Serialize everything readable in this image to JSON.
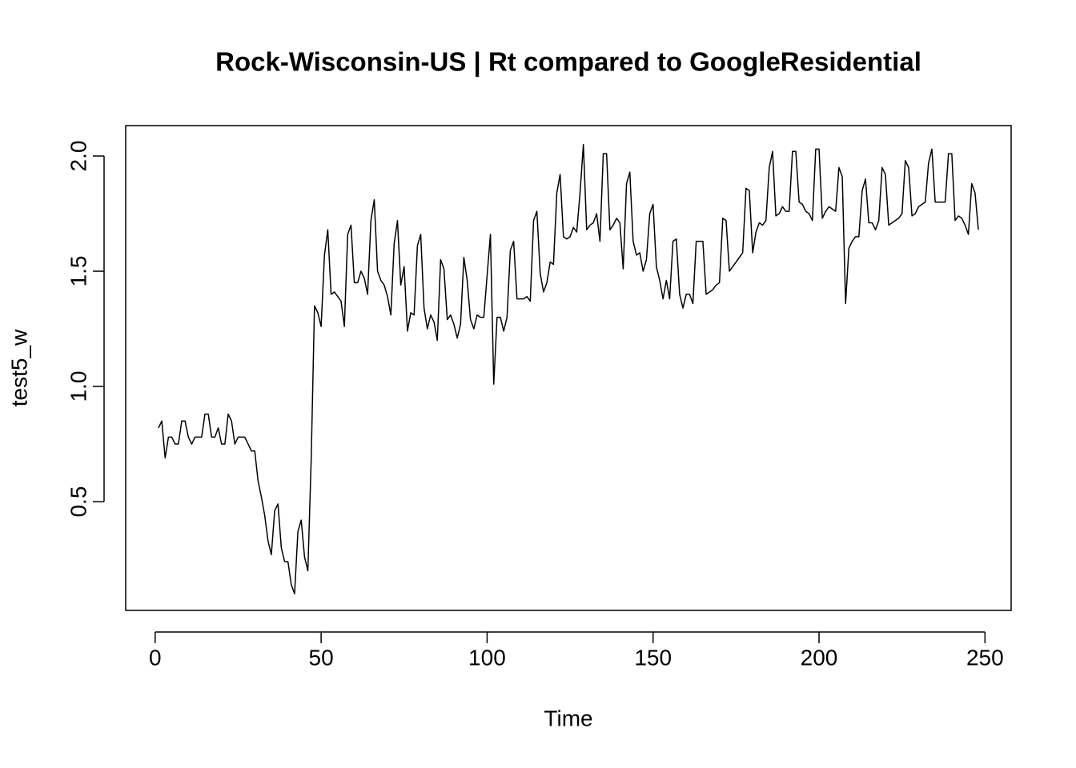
{
  "chart_data": {
    "type": "line",
    "title": "Rock-Wisconsin-US | Rt compared to GoogleResidential",
    "x_label": "Time",
    "y_label": "test5_w",
    "color": "#000000",
    "xlim": [
      -8.88,
      257.88
    ],
    "ylim": [
      0.028,
      2.132
    ],
    "xticks": [
      0,
      50,
      100,
      150,
      200,
      250
    ],
    "yticks": [
      0.5,
      {
        "value": 1.0,
        "label": "1.0"
      },
      1.5,
      {
        "value": 2.0,
        "label": "2.0"
      }
    ],
    "grid": false,
    "x": [
      1,
      2,
      3,
      4,
      5,
      6,
      7,
      8,
      9,
      10,
      11,
      12,
      13,
      14,
      15,
      16,
      17,
      18,
      19,
      20,
      21,
      22,
      23,
      24,
      25,
      26,
      27,
      28,
      29,
      30,
      31,
      32,
      33,
      34,
      35,
      36,
      37,
      38,
      39,
      40,
      41,
      42,
      43,
      44,
      45,
      46,
      47,
      48,
      49,
      50,
      51,
      52,
      53,
      54,
      55,
      56,
      57,
      58,
      59,
      60,
      61,
      62,
      63,
      64,
      65,
      66,
      67,
      68,
      69,
      70,
      71,
      72,
      73,
      74,
      75,
      76,
      77,
      78,
      79,
      80,
      81,
      82,
      83,
      84,
      85,
      86,
      87,
      88,
      89,
      90,
      91,
      92,
      93,
      94,
      95,
      96,
      97,
      98,
      99,
      100,
      101,
      102,
      103,
      104,
      105,
      106,
      107,
      108,
      109,
      110,
      111,
      112,
      113,
      114,
      115,
      116,
      117,
      118,
      119,
      120,
      121,
      122,
      123,
      124,
      125,
      126,
      127,
      128,
      129,
      130,
      131,
      132,
      133,
      134,
      135,
      136,
      137,
      138,
      139,
      140,
      141,
      142,
      143,
      144,
      145,
      146,
      147,
      148,
      149,
      150,
      151,
      152,
      153,
      154,
      155,
      156,
      157,
      158,
      159,
      160,
      161,
      162,
      163,
      164,
      165,
      166,
      167,
      168,
      169,
      170,
      171,
      172,
      173,
      174,
      175,
      176,
      177,
      178,
      179,
      180,
      181,
      182,
      183,
      184,
      185,
      186,
      187,
      188,
      189,
      190,
      191,
      192,
      193,
      194,
      195,
      196,
      197,
      198,
      199,
      200,
      201,
      202,
      203,
      204,
      205,
      206,
      207,
      208,
      209,
      210,
      211,
      212,
      213,
      214,
      215,
      216,
      217,
      218,
      219,
      220,
      221,
      222,
      223,
      224,
      225,
      226,
      227,
      228,
      229,
      230,
      231,
      232,
      233,
      234,
      235,
      236,
      237,
      238,
      239,
      240,
      241,
      242,
      243,
      244,
      245,
      246,
      247,
      248
    ],
    "values": [
      0.82,
      0.85,
      0.69,
      0.78,
      0.78,
      0.75,
      0.75,
      0.85,
      0.85,
      0.78,
      0.75,
      0.78,
      0.78,
      0.78,
      0.88,
      0.88,
      0.78,
      0.78,
      0.82,
      0.75,
      0.75,
      0.88,
      0.85,
      0.75,
      0.78,
      0.78,
      0.78,
      0.75,
      0.72,
      0.72,
      0.59,
      0.52,
      0.44,
      0.33,
      0.27,
      0.46,
      0.49,
      0.3,
      0.24,
      0.24,
      0.14,
      0.1,
      0.37,
      0.42,
      0.26,
      0.2,
      0.68,
      1.35,
      1.32,
      1.26,
      1.57,
      1.68,
      1.4,
      1.41,
      1.39,
      1.37,
      1.26,
      1.66,
      1.7,
      1.45,
      1.45,
      1.5,
      1.47,
      1.4,
      1.72,
      1.81,
      1.5,
      1.46,
      1.44,
      1.39,
      1.31,
      1.62,
      1.72,
      1.44,
      1.52,
      1.24,
      1.32,
      1.31,
      1.61,
      1.66,
      1.34,
      1.25,
      1.31,
      1.28,
      1.2,
      1.55,
      1.51,
      1.29,
      1.31,
      1.27,
      1.21,
      1.27,
      1.56,
      1.46,
      1.29,
      1.25,
      1.31,
      1.3,
      1.3,
      1.48,
      1.66,
      1.01,
      1.3,
      1.3,
      1.24,
      1.3,
      1.59,
      1.63,
      1.38,
      1.38,
      1.38,
      1.39,
      1.37,
      1.72,
      1.76,
      1.49,
      1.41,
      1.45,
      1.54,
      1.53,
      1.84,
      1.92,
      1.65,
      1.64,
      1.65,
      1.69,
      1.67,
      1.84,
      2.05,
      1.68,
      1.7,
      1.71,
      1.75,
      1.63,
      2.01,
      2.01,
      1.68,
      1.7,
      1.73,
      1.71,
      1.51,
      1.88,
      1.93,
      1.63,
      1.57,
      1.58,
      1.5,
      1.55,
      1.75,
      1.79,
      1.52,
      1.46,
      1.38,
      1.46,
      1.38,
      1.63,
      1.64,
      1.4,
      1.34,
      1.4,
      1.4,
      1.36,
      1.63,
      1.63,
      1.63,
      1.4,
      1.41,
      1.42,
      1.44,
      1.45,
      1.73,
      1.72,
      1.5,
      1.52,
      1.54,
      1.56,
      1.58,
      1.86,
      1.85,
      1.58,
      1.67,
      1.71,
      1.7,
      1.72,
      1.95,
      2.02,
      1.74,
      1.75,
      1.78,
      1.76,
      1.76,
      2.02,
      2.02,
      1.8,
      1.79,
      1.76,
      1.75,
      1.72,
      2.03,
      2.03,
      1.73,
      1.76,
      1.78,
      1.77,
      1.76,
      1.95,
      1.91,
      1.36,
      1.6,
      1.63,
      1.65,
      1.65,
      1.85,
      1.9,
      1.71,
      1.71,
      1.68,
      1.72,
      1.95,
      1.92,
      1.7,
      1.71,
      1.72,
      1.73,
      1.75,
      1.98,
      1.95,
      1.74,
      1.75,
      1.78,
      1.79,
      1.8,
      1.97,
      2.03,
      1.8,
      1.8,
      1.8,
      1.8,
      2.01,
      2.01,
      1.72,
      1.74,
      1.73,
      1.7,
      1.66,
      1.88,
      1.84,
      1.68
    ]
  }
}
